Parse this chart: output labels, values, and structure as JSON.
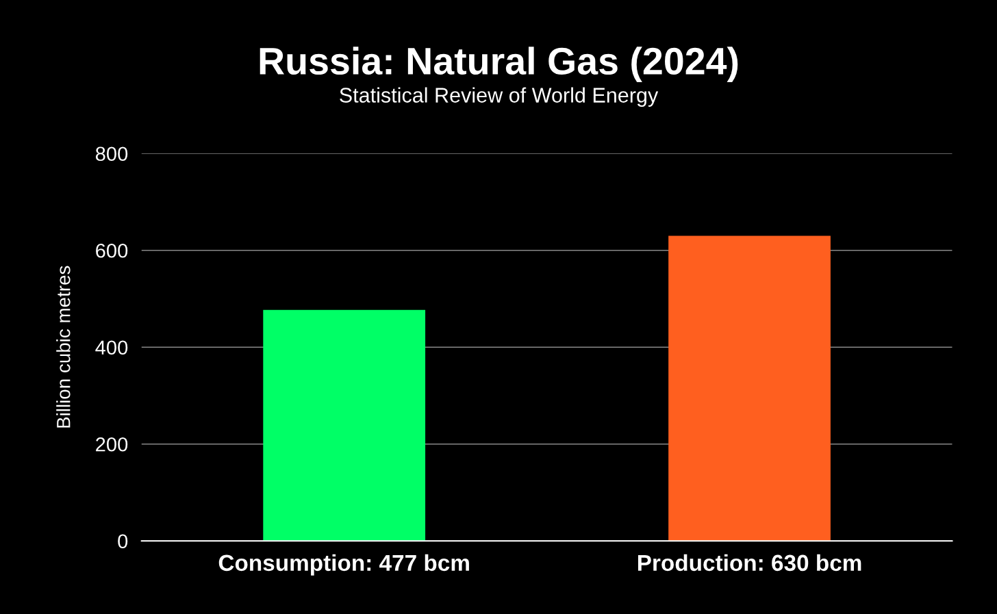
{
  "chart_data": {
    "type": "bar",
    "title": "Russia: Natural Gas (2024)",
    "subtitle": "Statistical Review of World Energy",
    "ylabel": "Billion cubic metres",
    "categories": [
      "Consumption: 477 bcm",
      "Production: 630 bcm"
    ],
    "values": [
      477,
      630
    ],
    "colors": [
      "#00ff66",
      "#ff5f1f"
    ],
    "ylim": [
      0,
      800
    ],
    "yticks": [
      0,
      200,
      400,
      600,
      800
    ],
    "grid": "y",
    "legend": false
  }
}
